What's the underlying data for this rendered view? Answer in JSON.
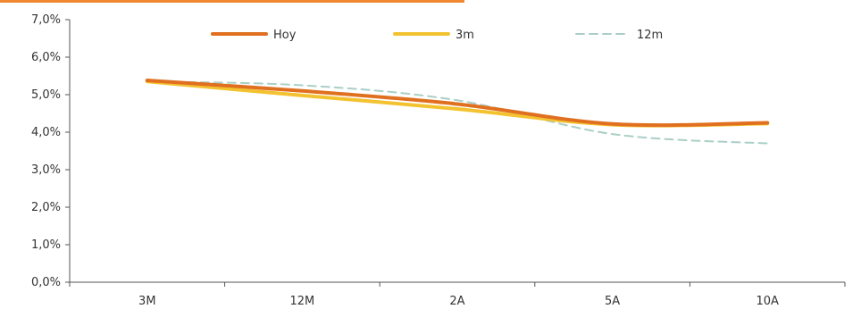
{
  "chart_data": {
    "type": "line",
    "categories": [
      "3M",
      "12M",
      "2A",
      "5A",
      "10A"
    ],
    "ylim": [
      0,
      7
    ],
    "yticks": [
      "0,0%",
      "1,0%",
      "2,0%",
      "3,0%",
      "4,0%",
      "5,0%",
      "6,0%",
      "7,0%"
    ],
    "legend_position": "top",
    "grid": false,
    "series": [
      {
        "name": "Hoy",
        "values": [
          5.38,
          5.1,
          4.75,
          4.22,
          4.25
        ],
        "color": "#e07020",
        "style": "solid"
      },
      {
        "name": "3m",
        "values": [
          5.35,
          4.98,
          4.62,
          4.2,
          4.23
        ],
        "color": "#f3c230",
        "style": "solid"
      },
      {
        "name": "12m",
        "values": [
          5.35,
          5.25,
          4.85,
          3.95,
          3.7
        ],
        "color": "#a9cfc7",
        "style": "dashed"
      }
    ]
  }
}
